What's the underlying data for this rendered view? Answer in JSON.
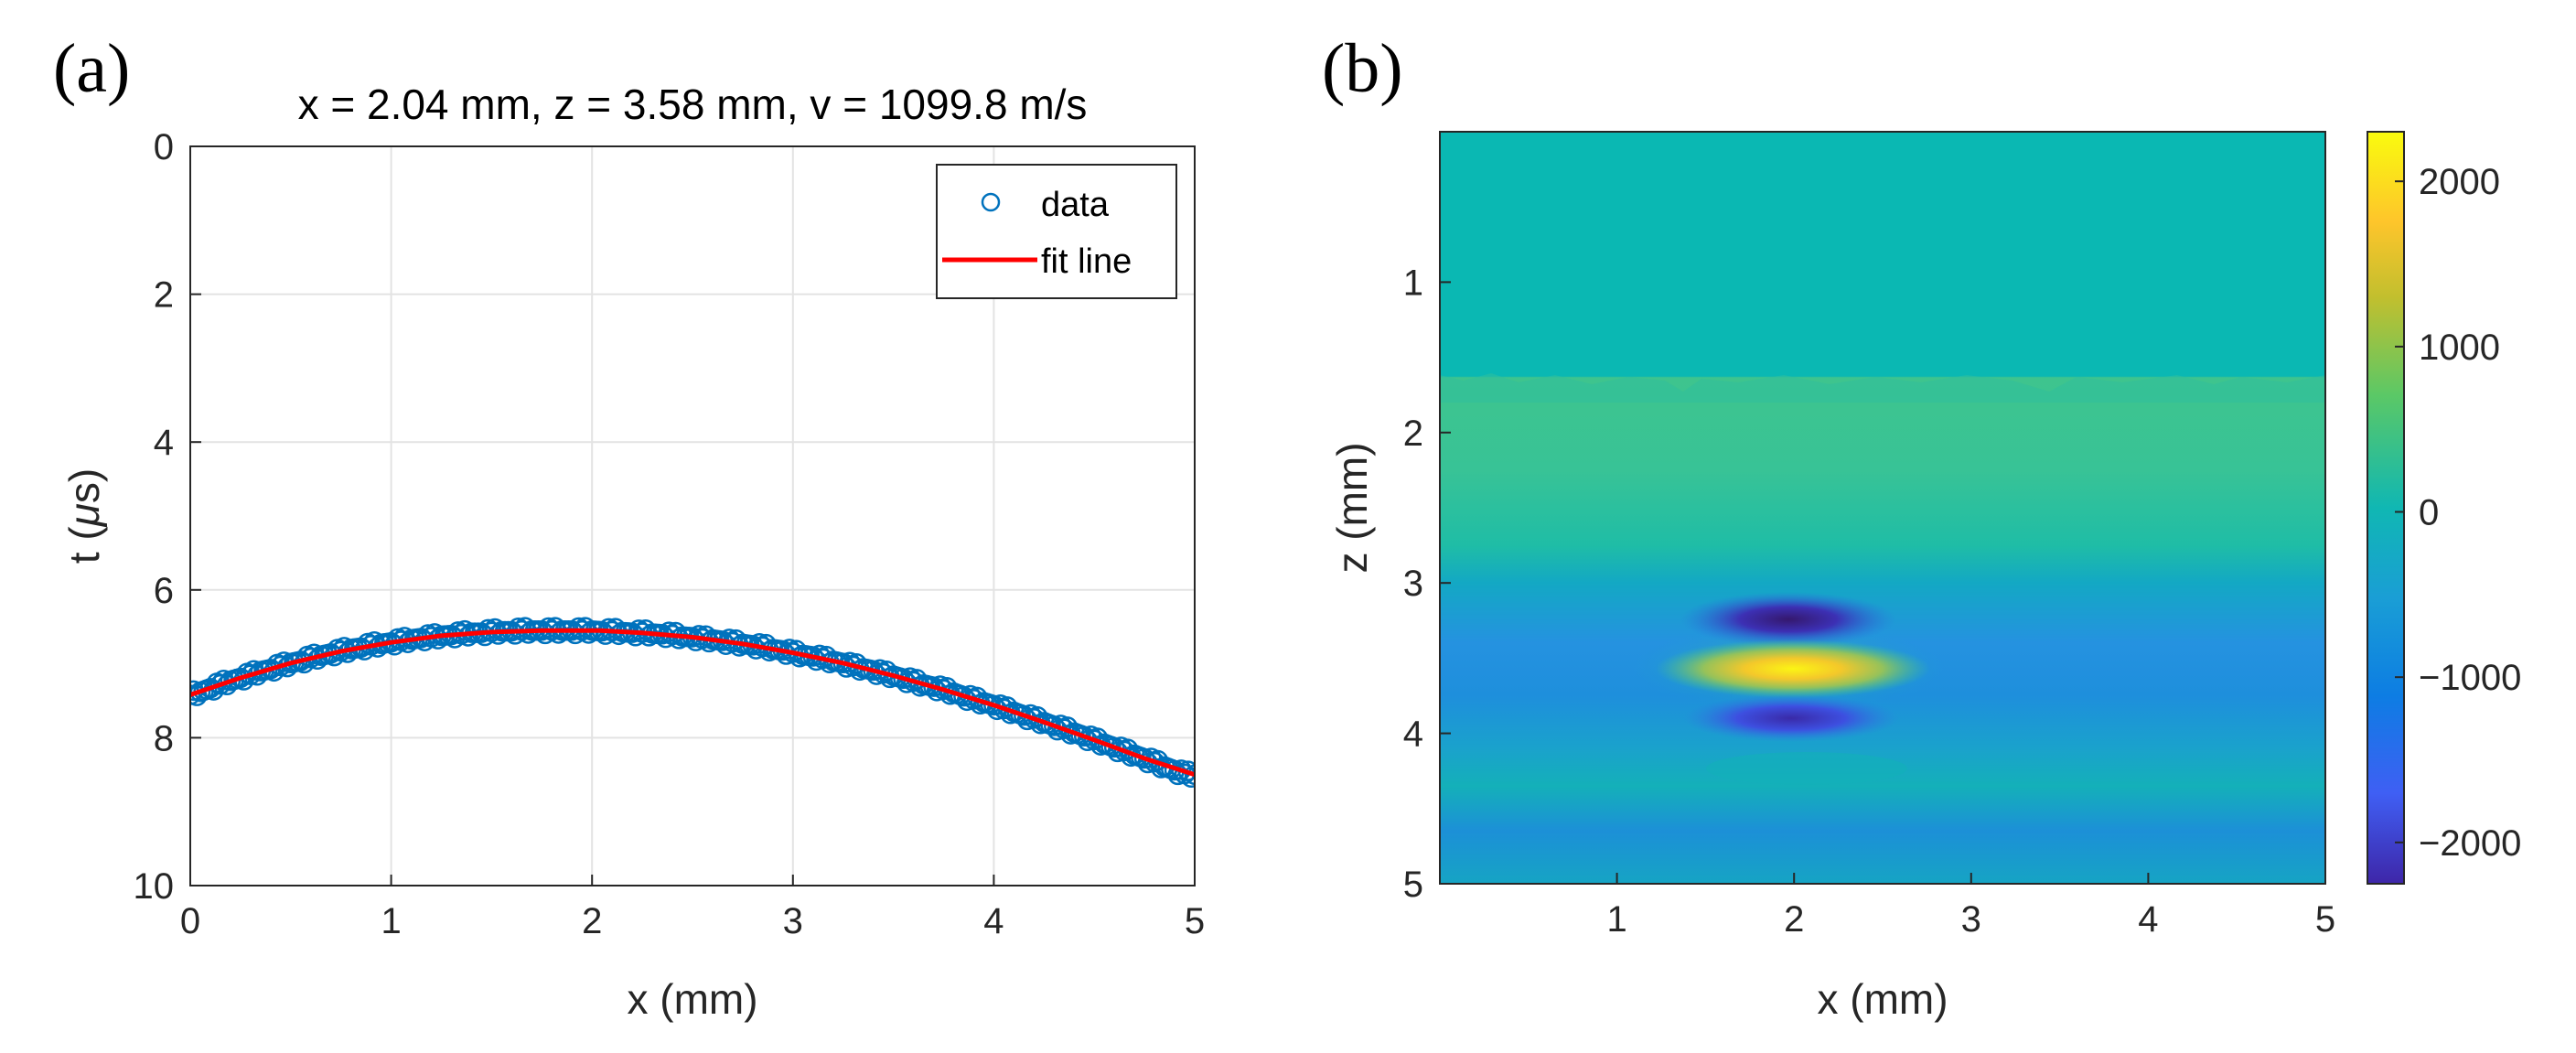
{
  "panels": {
    "a_label": "(a)",
    "b_label": "(b)"
  },
  "chart_data": [
    {
      "type": "scatter",
      "panel": "(a)",
      "title": "x = 2.04 mm, z = 3.58 mm, v = 1099.8 m/s",
      "xlabel": "x (mm)",
      "ylabel_main": "t (",
      "ylabel_mu": "μ",
      "ylabel_tail": "s)",
      "xlim": [
        0,
        5
      ],
      "ylim": [
        0,
        10
      ],
      "y_reversed": true,
      "grid": true,
      "legend_position": "top-right",
      "xticks": [
        "0",
        "1",
        "2",
        "3",
        "4",
        "5"
      ],
      "yticks": [
        "0",
        "2",
        "4",
        "6",
        "8",
        "10"
      ],
      "series": [
        {
          "name": "data",
          "style": "markers",
          "color": "#0072BD",
          "x": [
            0.0,
            0.05,
            0.1,
            0.15,
            0.2,
            0.25,
            0.3,
            0.35,
            0.4,
            0.45,
            0.5,
            0.55,
            0.6,
            0.65,
            0.7,
            0.75,
            0.8,
            0.85,
            0.9,
            0.95,
            1.0,
            1.05,
            1.1,
            1.15,
            1.2,
            1.25,
            1.3,
            1.35,
            1.4,
            1.45,
            1.5,
            1.55,
            1.6,
            1.65,
            1.7,
            1.75,
            1.8,
            1.85,
            1.9,
            1.95,
            2.0,
            2.05,
            2.1,
            2.15,
            2.2,
            2.25,
            2.3,
            2.35,
            2.4,
            2.45,
            2.5,
            2.55,
            2.6,
            2.65,
            2.7,
            2.75,
            2.8,
            2.85,
            2.9,
            2.95,
            3.0,
            3.05,
            3.1,
            3.15,
            3.2,
            3.25,
            3.3,
            3.35,
            3.4,
            3.45,
            3.5,
            3.55,
            3.6,
            3.65,
            3.7,
            3.75,
            3.8,
            3.85,
            3.9,
            3.95,
            4.0,
            4.05,
            4.1,
            4.15,
            4.2,
            4.25,
            4.3,
            4.35,
            4.4,
            4.45,
            4.5,
            4.55,
            4.6,
            4.65,
            4.7,
            4.75,
            4.8,
            4.85,
            4.9,
            4.95,
            5.0
          ],
          "y": [
            7.42,
            7.38,
            7.33,
            7.28,
            7.23,
            7.19,
            7.15,
            7.1,
            7.07,
            7.03,
            6.99,
            6.96,
            6.92,
            6.89,
            6.86,
            6.83,
            6.8,
            6.78,
            6.75,
            6.73,
            6.71,
            6.69,
            6.67,
            6.65,
            6.64,
            6.62,
            6.61,
            6.6,
            6.58,
            6.58,
            6.57,
            6.56,
            6.56,
            6.55,
            6.55,
            6.55,
            6.55,
            6.55,
            6.55,
            6.55,
            6.55,
            6.56,
            6.56,
            6.57,
            6.58,
            6.58,
            6.59,
            6.6,
            6.61,
            6.63,
            6.64,
            6.66,
            6.67,
            6.69,
            6.71,
            6.73,
            6.75,
            6.77,
            6.8,
            6.82,
            6.85,
            6.88,
            6.9,
            6.93,
            6.96,
            6.99,
            7.03,
            7.06,
            7.09,
            7.13,
            7.16,
            7.2,
            7.24,
            7.28,
            7.31,
            7.35,
            7.39,
            7.44,
            7.48,
            7.52,
            7.56,
            7.61,
            7.65,
            7.7,
            7.74,
            7.79,
            7.84,
            7.88,
            7.93,
            7.98,
            8.03,
            8.08,
            8.13,
            8.18,
            8.23,
            8.28,
            8.33,
            8.39,
            8.44,
            8.49,
            8.5
          ]
        },
        {
          "name": "fit line",
          "style": "line",
          "color": "#FF0000",
          "x": [
            0,
            0.25,
            0.5,
            0.75,
            1.0,
            1.25,
            1.5,
            1.75,
            2.04,
            2.25,
            2.5,
            2.75,
            3.0,
            3.25,
            3.5,
            3.75,
            4.0,
            4.25,
            4.5,
            4.75,
            5.0
          ],
          "y": [
            7.42,
            7.19,
            6.99,
            6.83,
            6.71,
            6.62,
            6.57,
            6.55,
            6.55,
            6.58,
            6.64,
            6.73,
            6.85,
            6.99,
            7.16,
            7.35,
            7.56,
            7.79,
            8.03,
            8.28,
            8.5
          ]
        }
      ]
    },
    {
      "type": "heatmap",
      "panel": "(b)",
      "xlabel": "x (mm)",
      "ylabel": "z (mm)",
      "xlim": [
        0,
        5
      ],
      "ylim": [
        0,
        5
      ],
      "y_reversed": true,
      "xticks": [
        "1",
        "2",
        "3",
        "4",
        "5"
      ],
      "yticks": [
        "1",
        "2",
        "3",
        "4",
        "5"
      ],
      "colormap": "parula",
      "clim": [
        -2250,
        2300
      ],
      "colorbar_ticks": [
        "2000",
        "1000",
        "0",
        "−1000",
        "−2000"
      ],
      "colorbar_tick_values": [
        2000,
        1000,
        0,
        -1000,
        -2000
      ],
      "features": [
        {
          "name": "background",
          "z_range": [
            0,
            1.6
          ],
          "value": 0
        },
        {
          "name": "upper band",
          "z_range": [
            1.6,
            2.7
          ],
          "value": 550
        },
        {
          "name": "dark blob above",
          "x": 2.04,
          "z": 3.22,
          "value": -2100
        },
        {
          "name": "peak",
          "x": 2.04,
          "z": 3.58,
          "value": 2250
        },
        {
          "name": "dark blob below",
          "x": 2.04,
          "z": 3.88,
          "value": -1600
        }
      ]
    }
  ]
}
